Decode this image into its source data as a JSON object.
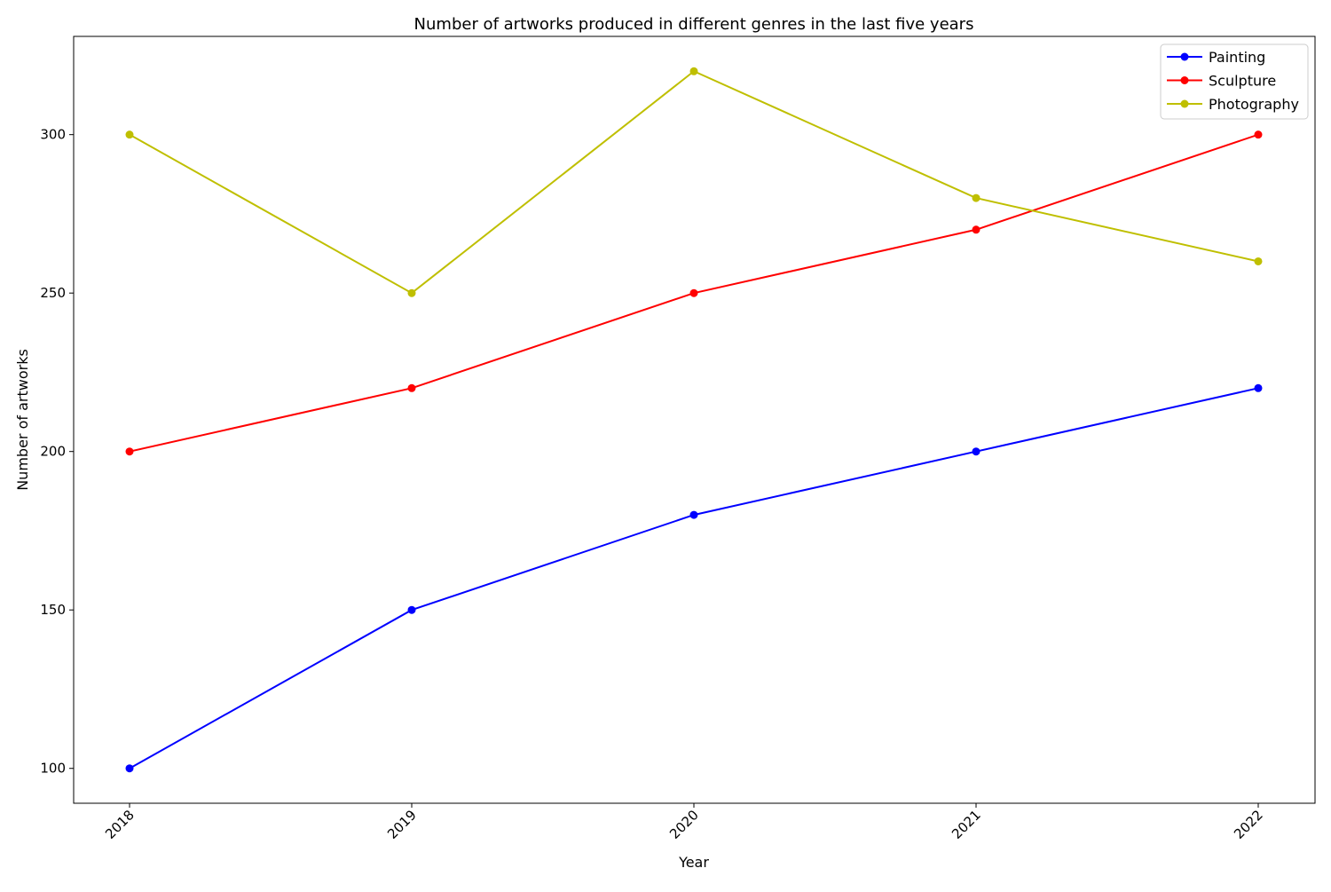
{
  "chart_data": {
    "type": "line",
    "title": "Number of artworks produced in different genres in the last five years",
    "xlabel": "Year",
    "ylabel": "Number of artworks",
    "x": [
      "2018",
      "2019",
      "2020",
      "2021",
      "2022"
    ],
    "series": [
      {
        "name": "Painting",
        "color": "#0000ff",
        "values": [
          100,
          150,
          180,
          200,
          220
        ]
      },
      {
        "name": "Sculpture",
        "color": "#ff0000",
        "values": [
          200,
          220,
          250,
          270,
          300
        ]
      },
      {
        "name": "Photography",
        "color": "#bfbf00",
        "values": [
          300,
          250,
          320,
          280,
          260
        ]
      }
    ],
    "yticks": [
      100,
      150,
      200,
      250,
      300
    ],
    "ylim": [
      89,
      331
    ],
    "grid": false,
    "legend_position": "top-right",
    "marker": "circle",
    "xtick_rotation": 45
  }
}
